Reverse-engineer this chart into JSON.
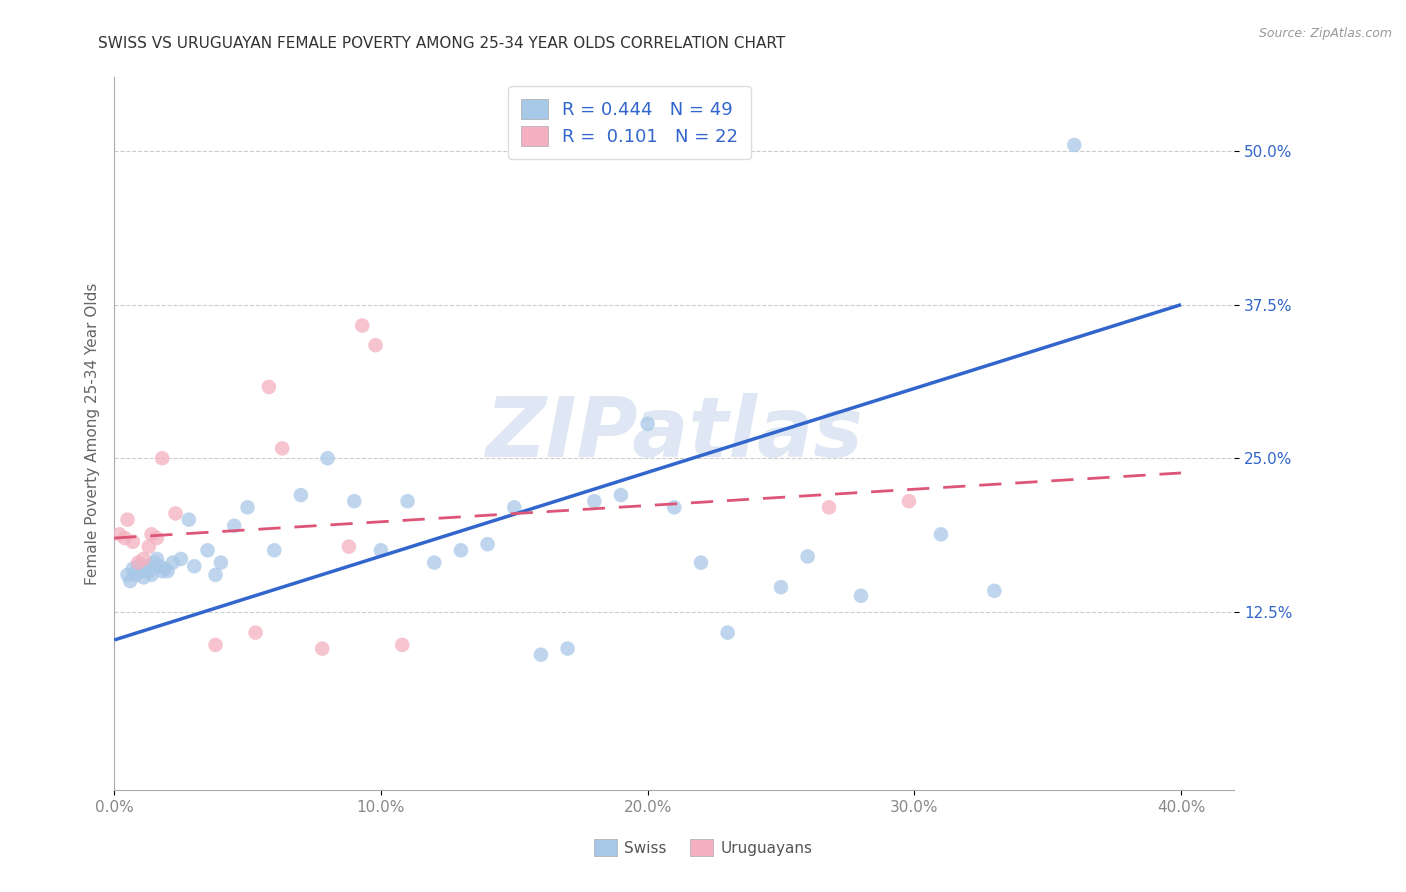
{
  "title": "SWISS VS URUGUAYAN FEMALE POVERTY AMONG 25-34 YEAR OLDS CORRELATION CHART",
  "source": "Source: ZipAtlas.com",
  "ylabel": "Female Poverty Among 25-34 Year Olds",
  "x_tick_labels": [
    "0.0%",
    "10.0%",
    "20.0%",
    "30.0%",
    "40.0%"
  ],
  "x_tick_values": [
    0.0,
    0.1,
    0.2,
    0.3,
    0.4
  ],
  "y_tick_labels": [
    "12.5%",
    "25.0%",
    "37.5%",
    "50.0%"
  ],
  "y_tick_values": [
    0.125,
    0.25,
    0.375,
    0.5
  ],
  "xlim": [
    0.0,
    0.42
  ],
  "ylim": [
    -0.02,
    0.56
  ],
  "swiss_R": "0.444",
  "swiss_N": "49",
  "uruguayan_R": "0.101",
  "uruguayan_N": "22",
  "swiss_color": "#a8c8e8",
  "uruguayan_color": "#f4b0c0",
  "swiss_line_color": "#3366cc",
  "uruguayan_line_color": "#dd5577",
  "watermark": "ZIPatlas",
  "swiss_x": [
    0.005,
    0.006,
    0.007,
    0.008,
    0.009,
    0.01,
    0.011,
    0.012,
    0.013,
    0.014,
    0.015,
    0.016,
    0.017,
    0.018,
    0.019,
    0.02,
    0.022,
    0.025,
    0.028,
    0.03,
    0.035,
    0.038,
    0.04,
    0.045,
    0.05,
    0.06,
    0.07,
    0.08,
    0.09,
    0.1,
    0.11,
    0.12,
    0.13,
    0.14,
    0.15,
    0.16,
    0.17,
    0.18,
    0.19,
    0.2,
    0.21,
    0.22,
    0.23,
    0.25,
    0.26,
    0.28,
    0.31,
    0.33,
    0.36
  ],
  "swiss_y": [
    0.155,
    0.15,
    0.16,
    0.155,
    0.162,
    0.158,
    0.153,
    0.162,
    0.158,
    0.155,
    0.165,
    0.168,
    0.162,
    0.158,
    0.16,
    0.158,
    0.165,
    0.168,
    0.2,
    0.162,
    0.175,
    0.155,
    0.165,
    0.195,
    0.21,
    0.175,
    0.22,
    0.25,
    0.215,
    0.175,
    0.215,
    0.165,
    0.175,
    0.18,
    0.21,
    0.09,
    0.095,
    0.215,
    0.22,
    0.278,
    0.21,
    0.165,
    0.108,
    0.145,
    0.17,
    0.138,
    0.188,
    0.142,
    0.505
  ],
  "uruguayan_x": [
    0.002,
    0.004,
    0.005,
    0.007,
    0.009,
    0.011,
    0.013,
    0.014,
    0.016,
    0.018,
    0.023,
    0.038,
    0.053,
    0.058,
    0.063,
    0.078,
    0.088,
    0.093,
    0.098,
    0.108,
    0.268,
    0.298
  ],
  "uruguayan_y": [
    0.188,
    0.185,
    0.2,
    0.182,
    0.165,
    0.168,
    0.178,
    0.188,
    0.185,
    0.25,
    0.205,
    0.098,
    0.108,
    0.308,
    0.258,
    0.095,
    0.178,
    0.358,
    0.342,
    0.098,
    0.21,
    0.215
  ],
  "swiss_line_x0": 0.0,
  "swiss_line_y0": 0.102,
  "swiss_line_x1": 0.4,
  "swiss_line_y1": 0.375,
  "uruguayan_line_x0": 0.0,
  "uruguayan_line_y0": 0.185,
  "uruguayan_line_x1": 0.4,
  "uruguayan_line_y1": 0.238,
  "legend_label_swiss": "Swiss",
  "legend_label_uruguayan": "Uruguayans",
  "title_fontsize": 11,
  "axis_label_fontsize": 11,
  "tick_fontsize": 11,
  "legend_fontsize": 13,
  "background_color": "#ffffff",
  "grid_color": "#cccccc",
  "marker_size": 110
}
